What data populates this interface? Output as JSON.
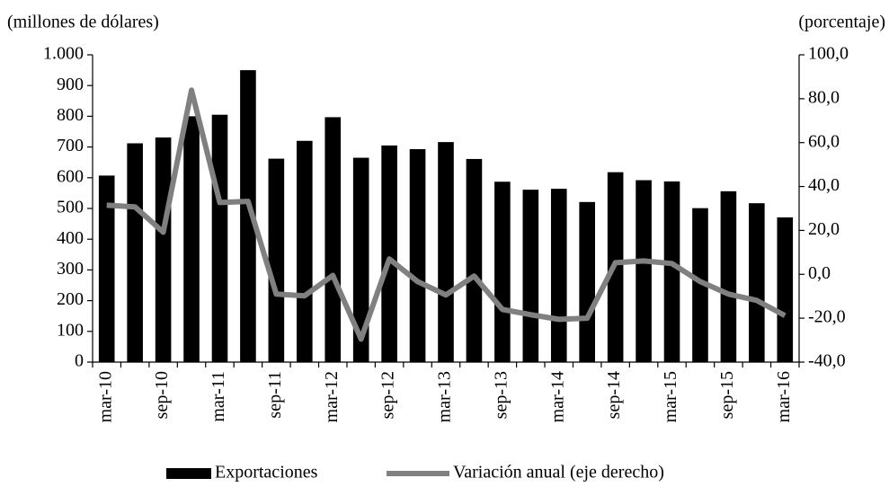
{
  "chart_data": {
    "type": "bar_line",
    "y_label": "(millones de dólares)",
    "y2_label": "(porcentaje)",
    "categories": [
      "mar-10",
      null,
      "sep-10",
      null,
      "mar-11",
      null,
      "sep-11",
      null,
      "mar-12",
      null,
      "sep-12",
      null,
      "mar-13",
      null,
      "sep-13",
      null,
      "mar-14",
      null,
      "sep-14",
      null,
      "mar-15",
      null,
      "sep-15",
      null,
      "mar-16"
    ],
    "series": [
      {
        "name": "Exportaciones",
        "type": "bar",
        "color": "#000000",
        "values": [
          607,
          712,
          731,
          800,
          805,
          950,
          662,
          720,
          797,
          665,
          705,
          693,
          716,
          661,
          587,
          561,
          564,
          521,
          618,
          592,
          588,
          501,
          556,
          517,
          471
        ]
      },
      {
        "name": "Variación anual (eje derecho)",
        "type": "line",
        "axis": "y2",
        "color": "#808080",
        "values": [
          31.5,
          30.7,
          19.2,
          83.9,
          32.7,
          33.2,
          -9,
          -9.8,
          -0.5,
          -29.5,
          7,
          -3.3,
          -9.4,
          -0.8,
          -16,
          -18.4,
          -20.5,
          -20,
          5.3,
          6.1,
          4.9,
          -3.3,
          -9,
          -11.9,
          -18.8
        ]
      }
    ],
    "ylim": [
      0,
      1000
    ],
    "yticks": [
      0,
      100,
      200,
      300,
      400,
      500,
      600,
      700,
      800,
      900,
      {
        "value": 1000,
        "label": "1.000"
      }
    ],
    "y2lim": [
      -40,
      100
    ],
    "y2ticks": [
      {
        "value": -40,
        "label": "-40,0"
      },
      {
        "value": -20,
        "label": "-20,0"
      },
      {
        "value": 0,
        "label": "0,0"
      },
      {
        "value": 20,
        "label": "20,0"
      },
      {
        "value": 40,
        "label": "40,0"
      },
      {
        "value": 60,
        "label": "60,0"
      },
      {
        "value": 80,
        "label": "80,0"
      },
      {
        "value": 100,
        "label": "100,0"
      }
    ],
    "grid": false
  }
}
